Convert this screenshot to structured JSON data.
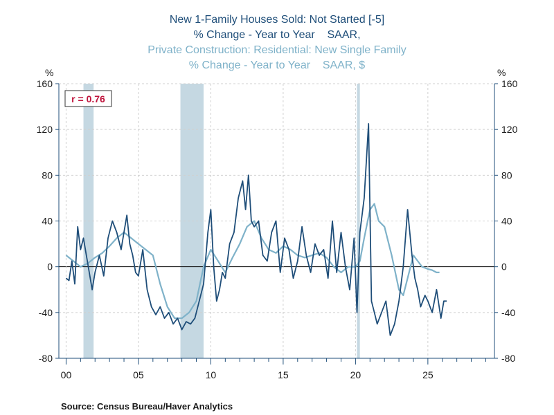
{
  "chart_data": {
    "type": "line",
    "title_series1": [
      "New 1-Family Houses Sold: Not Started [-5]",
      "% Change - Year to Year    SAAR,"
    ],
    "title_series2": [
      "Private Construction: Residential: New Single Family",
      "% Change - Year to Year    SAAR, $"
    ],
    "ylabel_left": "%",
    "ylabel_right": "%",
    "ylim": [
      -80,
      160
    ],
    "yticks": [
      -80,
      -40,
      0,
      40,
      80,
      120,
      160
    ],
    "xlim": [
      1999.5,
      2029.6
    ],
    "xticks": [
      {
        "value": 2000,
        "label": "00"
      },
      {
        "value": 2005,
        "label": "05"
      },
      {
        "value": 2010,
        "label": "10"
      },
      {
        "value": 2015,
        "label": "15"
      },
      {
        "value": 2020,
        "label": "20"
      },
      {
        "value": 2025,
        "label": "25"
      }
    ],
    "recessions": [
      [
        2001.2,
        2001.9
      ],
      [
        2007.9,
        2009.5
      ],
      [
        2020.1,
        2020.3
      ]
    ],
    "correlation_label": "r = 0.76",
    "series": [
      {
        "name": "New 1-Family Houses Sold: Not Started [-5]",
        "color": "#1f4e79",
        "x": [
          2000.0,
          2000.2,
          2000.4,
          2000.6,
          2000.8,
          2001.0,
          2001.2,
          2001.4,
          2001.6,
          2001.8,
          2002.0,
          2002.3,
          2002.6,
          2002.9,
          2003.2,
          2003.5,
          2003.8,
          2004.0,
          2004.2,
          2004.4,
          2004.6,
          2004.8,
          2005.0,
          2005.3,
          2005.6,
          2005.9,
          2006.2,
          2006.5,
          2006.8,
          2007.1,
          2007.4,
          2007.7,
          2008.0,
          2008.3,
          2008.6,
          2008.9,
          2009.2,
          2009.5,
          2009.8,
          2010.0,
          2010.2,
          2010.4,
          2010.6,
          2010.8,
          2011.0,
          2011.3,
          2011.6,
          2011.9,
          2012.2,
          2012.4,
          2012.6,
          2012.8,
          2013.0,
          2013.3,
          2013.6,
          2013.9,
          2014.2,
          2014.5,
          2014.8,
          2015.1,
          2015.4,
          2015.7,
          2016.0,
          2016.3,
          2016.6,
          2016.9,
          2017.2,
          2017.5,
          2017.8,
          2018.1,
          2018.4,
          2018.7,
          2019.0,
          2019.3,
          2019.6,
          2019.9,
          2020.1,
          2020.3,
          2020.6,
          2020.9,
          2021.1,
          2021.3,
          2021.5,
          2021.8,
          2022.1,
          2022.4,
          2022.7,
          2023.0,
          2023.3,
          2023.6,
          2023.9,
          2024.1,
          2024.3,
          2024.5,
          2024.8,
          2025.0,
          2025.3,
          2025.6,
          2025.9,
          2026.1,
          2026.3
        ],
        "values": [
          -10,
          -12,
          5,
          -15,
          35,
          15,
          25,
          10,
          -5,
          -20,
          -5,
          10,
          -8,
          25,
          40,
          30,
          15,
          30,
          45,
          20,
          10,
          -5,
          -8,
          15,
          -20,
          -35,
          -42,
          -35,
          -45,
          -40,
          -50,
          -45,
          -55,
          -48,
          -50,
          -45,
          -30,
          -15,
          30,
          50,
          0,
          -30,
          -20,
          -5,
          -10,
          20,
          30,
          60,
          75,
          50,
          80,
          40,
          35,
          40,
          10,
          5,
          30,
          40,
          -5,
          25,
          15,
          -10,
          5,
          35,
          10,
          -5,
          20,
          10,
          15,
          -10,
          40,
          -5,
          30,
          0,
          -20,
          25,
          -40,
          30,
          60,
          125,
          -30,
          -40,
          -50,
          -40,
          -30,
          -60,
          -50,
          -30,
          0,
          50,
          10,
          -10,
          -20,
          -35,
          -25,
          -30,
          -40,
          -20,
          -45,
          -30,
          -30
        ]
      },
      {
        "name": "Private Construction: Residential: New Single Family",
        "color": "#7fb2c9",
        "x": [
          2000.0,
          2000.5,
          2001.0,
          2001.5,
          2002.0,
          2002.5,
          2003.0,
          2003.5,
          2004.0,
          2004.5,
          2005.0,
          2005.5,
          2006.0,
          2006.5,
          2007.0,
          2007.5,
          2008.0,
          2008.5,
          2009.0,
          2009.5,
          2010.0,
          2010.5,
          2011.0,
          2011.5,
          2012.0,
          2012.5,
          2013.0,
          2013.5,
          2014.0,
          2014.5,
          2015.0,
          2015.5,
          2016.0,
          2016.5,
          2017.0,
          2017.5,
          2018.0,
          2018.5,
          2019.0,
          2019.5,
          2020.0,
          2020.3,
          2020.6,
          2021.0,
          2021.3,
          2021.6,
          2022.0,
          2022.5,
          2023.0,
          2023.3,
          2023.6,
          2024.0,
          2024.3,
          2024.6,
          2025.0,
          2025.3,
          2025.6,
          2025.8
        ],
        "values": [
          10,
          5,
          0,
          3,
          8,
          12,
          18,
          25,
          30,
          25,
          20,
          15,
          10,
          -15,
          -35,
          -45,
          -45,
          -40,
          -30,
          0,
          15,
          5,
          -5,
          8,
          20,
          35,
          40,
          25,
          15,
          12,
          18,
          15,
          10,
          8,
          10,
          12,
          8,
          0,
          -5,
          0,
          0,
          5,
          25,
          50,
          55,
          40,
          35,
          10,
          -20,
          -25,
          -10,
          10,
          5,
          0,
          -2,
          -3,
          -5,
          -5
        ]
      }
    ]
  },
  "source": "Source:  Census Bureau/Haver Analytics"
}
